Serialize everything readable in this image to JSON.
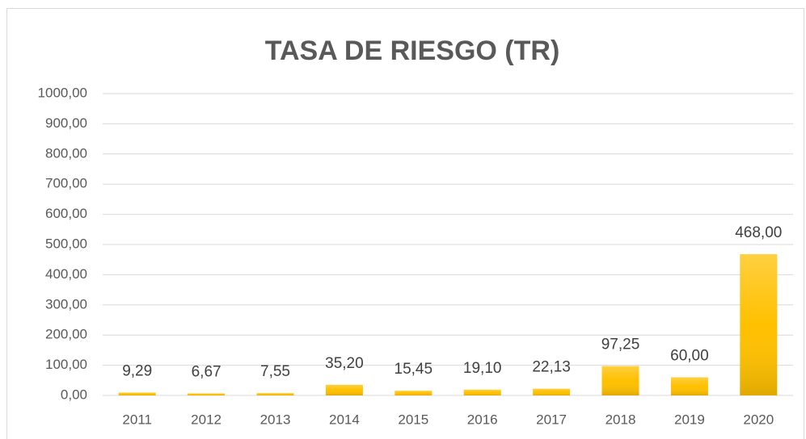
{
  "chart_data": {
    "type": "bar",
    "title": "TASA DE RIESGO (TR)",
    "categories": [
      "2011",
      "2012",
      "2013",
      "2014",
      "2015",
      "2016",
      "2017",
      "2018",
      "2019",
      "2020"
    ],
    "values": [
      9.29,
      6.67,
      7.55,
      35.2,
      15.45,
      19.1,
      22.13,
      97.25,
      60.0,
      468.0
    ],
    "value_labels": [
      "9,29",
      "6,67",
      "7,55",
      "35,20",
      "15,45",
      "19,10",
      "22,13",
      "97,25",
      "60,00",
      "468,00"
    ],
    "color": "#ffc000",
    "ylim": [
      0,
      1000
    ],
    "yticks": [
      {
        "value": 0,
        "label": "0,00"
      },
      {
        "value": 100,
        "label": "100,00"
      },
      {
        "value": 200,
        "label": "200,00"
      },
      {
        "value": 300,
        "label": "300,00"
      },
      {
        "value": 400,
        "label": "400,00"
      },
      {
        "value": 500,
        "label": "500,00"
      },
      {
        "value": 600,
        "label": "600,00"
      },
      {
        "value": 700,
        "label": "700,00"
      },
      {
        "value": 800,
        "label": "800,00"
      },
      {
        "value": 900,
        "label": "900,00"
      },
      {
        "value": 1000,
        "label": "1000,00"
      }
    ],
    "grid": true
  }
}
